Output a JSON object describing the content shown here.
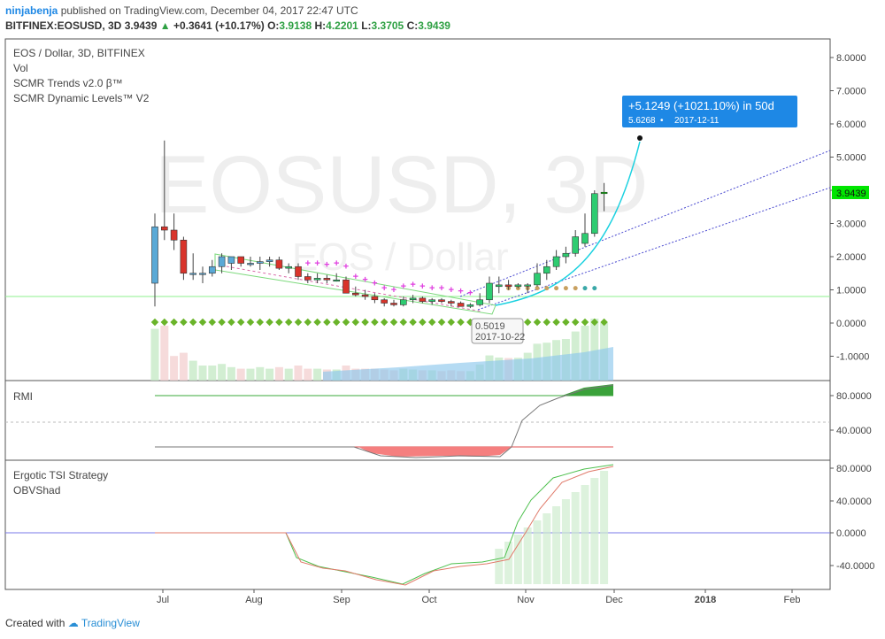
{
  "header": {
    "author": "ninjabenja",
    "published_text": "published on TradingView.com, December 04, 2017 22:47 UTC",
    "symbol": "BITFINEX:EOSUSD, 3D",
    "last": "3.9439",
    "change": "+0.3641 (+10.17%)",
    "o_label": "O:",
    "o_value": "3.9138",
    "h_label": "H:",
    "h_value": "4.2201",
    "l_label": "L:",
    "l_value": "3.3705",
    "c_label": "C:",
    "c_value": "3.9439",
    "up_arrow": "▲"
  },
  "main_legend": [
    "EOS / Dollar, 3D, BITFINEX",
    "Vol",
    "SCMR Trends v2.0 β™",
    "SCMR Dynamic Levels™ V2"
  ],
  "watermark": {
    "big": "EOSUSD, 3D",
    "small": "EOS / Dollar"
  },
  "price_axis": [
    "8.0000",
    "7.0000",
    "6.0000",
    "5.0000",
    "4.0000",
    "3.0000",
    "2.0000",
    "1.0000",
    "0.0000",
    "-1.0000"
  ],
  "last_price_tag": "3.9439",
  "projection": {
    "line1": "+5.1249 (+1021.10%)  in 50d",
    "line2_price": "5.6268",
    "line2_date": "2017-12-11"
  },
  "low_marker": {
    "price": "0.5019",
    "date": "2017-10-22"
  },
  "rmi_panel": {
    "label": "RMI",
    "axis": [
      "80.0000",
      "40.0000"
    ]
  },
  "tsi_panel": {
    "labels": [
      "Ergotic TSI Strategy",
      "OBVShad"
    ],
    "axis": [
      "80.0000",
      "40.0000",
      "0.0000",
      "-40.0000"
    ]
  },
  "time_axis": [
    "Jul",
    "Aug",
    "Sep",
    "Oct",
    "Nov",
    "Dec",
    "2018",
    "Feb"
  ],
  "footer": {
    "created_with": "Created with",
    "brand": "TradingView"
  },
  "colors": {
    "up": "#2ecc71",
    "down": "#d9342b",
    "blue_candle": "#5aa9d6",
    "accent": "#1e88e5",
    "tag_green": "#00e600"
  },
  "chart_data": {
    "type": "candlestick",
    "title": "EOS / Dollar, 3D, BITFINEX",
    "ylim": [
      -1.5,
      8.5
    ],
    "candles": [
      {
        "o": 1.2,
        "h": 3.3,
        "l": 0.5,
        "c": 2.9
      },
      {
        "o": 2.9,
        "h": 5.5,
        "l": 2.5,
        "c": 2.8
      },
      {
        "o": 2.8,
        "h": 3.3,
        "l": 2.2,
        "c": 2.5
      },
      {
        "o": 2.5,
        "h": 2.6,
        "l": 1.3,
        "c": 1.5
      },
      {
        "o": 1.5,
        "h": 2.1,
        "l": 1.3,
        "c": 1.5
      },
      {
        "o": 1.5,
        "h": 1.7,
        "l": 1.2,
        "c": 1.5
      },
      {
        "o": 1.5,
        "h": 1.9,
        "l": 1.4,
        "c": 1.7
      },
      {
        "o": 1.7,
        "h": 2.1,
        "l": 1.5,
        "c": 2.0
      },
      {
        "o": 1.8,
        "h": 2.0,
        "l": 1.6,
        "c": 2.0
      },
      {
        "o": 2.0,
        "h": 2.0,
        "l": 1.7,
        "c": 1.8
      },
      {
        "o": 1.8,
        "h": 2.0,
        "l": 1.7,
        "c": 1.8
      },
      {
        "o": 1.8,
        "h": 2.0,
        "l": 1.6,
        "c": 1.85
      },
      {
        "o": 1.85,
        "h": 2.0,
        "l": 1.7,
        "c": 1.9
      },
      {
        "o": 1.9,
        "h": 2.0,
        "l": 1.6,
        "c": 1.65
      },
      {
        "o": 1.65,
        "h": 1.8,
        "l": 1.5,
        "c": 1.7
      },
      {
        "o": 1.7,
        "h": 1.8,
        "l": 1.3,
        "c": 1.4
      },
      {
        "o": 1.4,
        "h": 1.5,
        "l": 1.2,
        "c": 1.3
      },
      {
        "o": 1.3,
        "h": 1.5,
        "l": 1.2,
        "c": 1.35
      },
      {
        "o": 1.35,
        "h": 1.45,
        "l": 1.2,
        "c": 1.3
      },
      {
        "o": 1.3,
        "h": 1.5,
        "l": 1.25,
        "c": 1.3
      },
      {
        "o": 1.3,
        "h": 1.4,
        "l": 0.9,
        "c": 0.9
      },
      {
        "o": 0.9,
        "h": 1.1,
        "l": 0.8,
        "c": 0.85
      },
      {
        "o": 0.85,
        "h": 1.0,
        "l": 0.7,
        "c": 0.8
      },
      {
        "o": 0.8,
        "h": 0.9,
        "l": 0.6,
        "c": 0.7
      },
      {
        "o": 0.7,
        "h": 0.75,
        "l": 0.5,
        "c": 0.6
      },
      {
        "o": 0.6,
        "h": 0.7,
        "l": 0.5,
        "c": 0.55
      },
      {
        "o": 0.55,
        "h": 0.8,
        "l": 0.5,
        "c": 0.7
      },
      {
        "o": 0.7,
        "h": 0.85,
        "l": 0.6,
        "c": 0.75
      },
      {
        "o": 0.75,
        "h": 0.8,
        "l": 0.6,
        "c": 0.65
      },
      {
        "o": 0.65,
        "h": 0.75,
        "l": 0.55,
        "c": 0.7
      },
      {
        "o": 0.7,
        "h": 0.75,
        "l": 0.6,
        "c": 0.65
      },
      {
        "o": 0.65,
        "h": 0.7,
        "l": 0.5,
        "c": 0.6
      },
      {
        "o": 0.6,
        "h": 0.65,
        "l": 0.5,
        "c": 0.5
      },
      {
        "o": 0.5,
        "h": 0.6,
        "l": 0.45,
        "c": 0.55
      },
      {
        "o": 0.55,
        "h": 0.9,
        "l": 0.5,
        "c": 0.7
      },
      {
        "o": 0.7,
        "h": 1.4,
        "l": 0.6,
        "c": 1.2
      },
      {
        "o": 1.1,
        "h": 1.4,
        "l": 0.9,
        "c": 1.15
      },
      {
        "o": 1.15,
        "h": 1.3,
        "l": 1.0,
        "c": 1.1
      },
      {
        "o": 1.1,
        "h": 1.2,
        "l": 1.05,
        "c": 1.15
      },
      {
        "o": 1.15,
        "h": 1.2,
        "l": 0.9,
        "c": 1.15
      },
      {
        "o": 1.15,
        "h": 1.8,
        "l": 1.1,
        "c": 1.5
      },
      {
        "o": 1.5,
        "h": 1.9,
        "l": 1.3,
        "c": 1.7
      },
      {
        "o": 1.7,
        "h": 2.2,
        "l": 1.6,
        "c": 2.0
      },
      {
        "o": 2.0,
        "h": 2.3,
        "l": 1.8,
        "c": 2.1
      },
      {
        "o": 2.1,
        "h": 2.8,
        "l": 2.0,
        "c": 2.6
      },
      {
        "o": 2.4,
        "h": 3.3,
        "l": 2.3,
        "c": 2.7
      },
      {
        "o": 2.7,
        "h": 4.0,
        "l": 2.6,
        "c": 3.9
      },
      {
        "o": 3.91,
        "h": 4.22,
        "l": 3.37,
        "c": 3.94
      }
    ]
  }
}
